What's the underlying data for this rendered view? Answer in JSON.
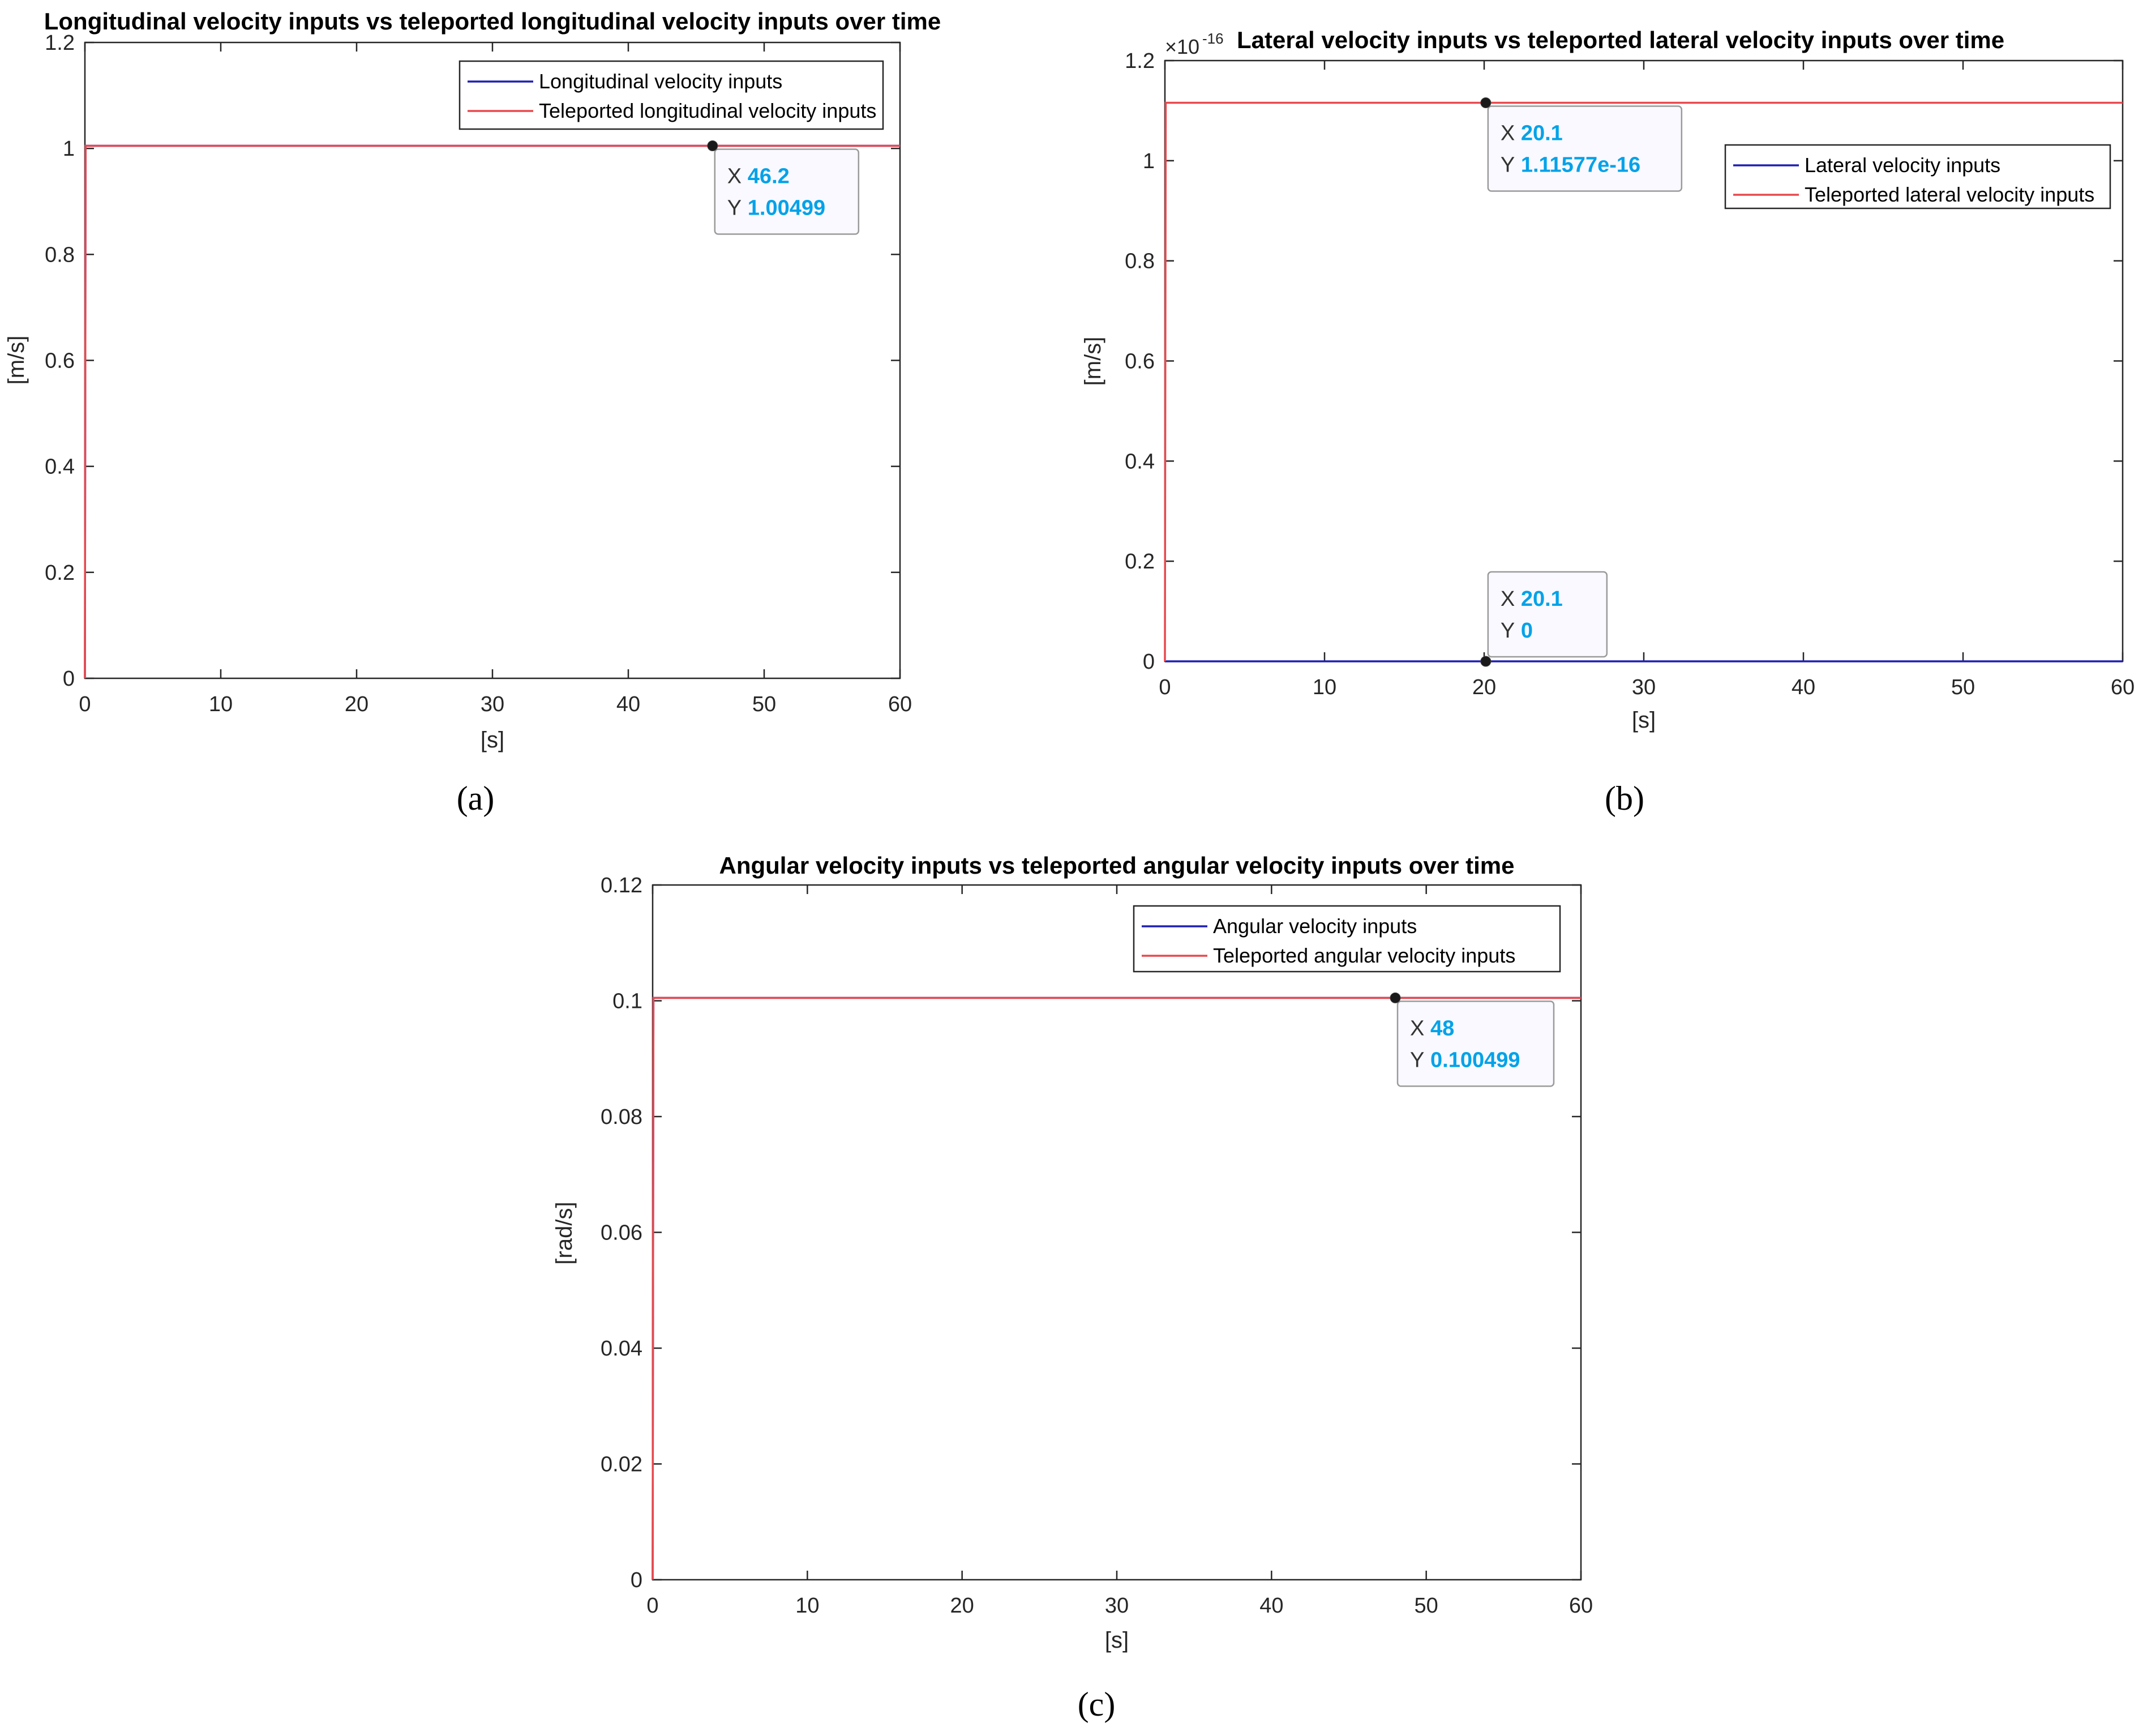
{
  "colors": {
    "series_blue": "#1f1fb4",
    "series_red": "#e8484d",
    "axis": "#262626",
    "datatip_value": "#00a2e8",
    "datatip_bg": "#f9f9ff",
    "datatip_border": "#9a9a9a"
  },
  "chart_data": [
    {
      "type": "line",
      "panel_label": "(a)",
      "title": "Longitudinal velocity inputs vs teleported longitudinal velocity inputs over time",
      "xlabel": "[s]",
      "ylabel": "[m/s]",
      "xlim": [
        0,
        60
      ],
      "ylim": [
        0,
        1.2
      ],
      "xticks": [
        0,
        10,
        20,
        30,
        40,
        50,
        60
      ],
      "xtick_labels": [
        "0",
        "10",
        "20",
        "30",
        "40",
        "50",
        "60"
      ],
      "yticks": [
        0,
        0.2,
        0.4,
        0.6,
        0.8,
        1.0,
        1.2
      ],
      "ytick_labels": [
        "0",
        "0.2",
        "0.4",
        "0.6",
        "0.8",
        "1",
        "1.2"
      ],
      "grid": false,
      "legend_position": "top-right",
      "series": [
        {
          "name": "Longitudinal velocity inputs",
          "color": "#1f1fb4",
          "x": [
            0,
            0.05,
            60
          ],
          "y": [
            0,
            1.00499,
            1.00499
          ]
        },
        {
          "name": "Teleported longitudinal velocity inputs",
          "color": "#e8484d",
          "x": [
            0,
            0.05,
            60
          ],
          "y": [
            0,
            1.00499,
            1.00499
          ]
        }
      ],
      "datatips": [
        {
          "x": 46.2,
          "y": 1.00499,
          "x_text": "46.2",
          "y_text": "1.00499",
          "placement": "below-right"
        }
      ]
    },
    {
      "type": "line",
      "panel_label": "(b)",
      "title": "Lateral velocity inputs vs teleported lateral velocity inputs over time",
      "xlabel": "[s]",
      "ylabel": "[m/s]",
      "y_exponent_label": "-16",
      "xlim": [
        0,
        60
      ],
      "ylim": [
        0,
        1.2
      ],
      "xticks": [
        0,
        10,
        20,
        30,
        40,
        50,
        60
      ],
      "xtick_labels": [
        "0",
        "10",
        "20",
        "30",
        "40",
        "50",
        "60"
      ],
      "yticks": [
        0,
        0.2,
        0.4,
        0.6,
        0.8,
        1.0,
        1.2
      ],
      "ytick_labels": [
        "0",
        "0.2",
        "0.4",
        "0.6",
        "0.8",
        "1",
        "1.2"
      ],
      "grid": false,
      "legend_position": "right",
      "series": [
        {
          "name": "Lateral velocity inputs",
          "color": "#1f1fb4",
          "x": [
            0,
            60
          ],
          "y": [
            0,
            0
          ]
        },
        {
          "name": "Teleported lateral velocity inputs",
          "color": "#e8484d",
          "x": [
            0,
            0.05,
            60
          ],
          "y": [
            0,
            1.11577,
            1.11577
          ]
        }
      ],
      "datatips": [
        {
          "x": 20.1,
          "y": 1.11577,
          "x_text": "20.1",
          "y_text": "1.11577e-16",
          "placement": "below-right"
        },
        {
          "x": 20.1,
          "y": 0,
          "x_text": "20.1",
          "y_text": "0",
          "placement": "above-right"
        }
      ]
    },
    {
      "type": "line",
      "panel_label": "(c)",
      "title": "Angular velocity inputs vs teleported angular velocity inputs over time",
      "xlabel": "[s]",
      "ylabel": "[rad/s]",
      "xlim": [
        0,
        60
      ],
      "ylim": [
        0,
        0.12
      ],
      "xticks": [
        0,
        10,
        20,
        30,
        40,
        50,
        60
      ],
      "xtick_labels": [
        "0",
        "10",
        "20",
        "30",
        "40",
        "50",
        "60"
      ],
      "yticks": [
        0,
        0.02,
        0.04,
        0.06,
        0.08,
        0.1,
        0.12
      ],
      "ytick_labels": [
        "0",
        "0.02",
        "0.04",
        "0.06",
        "0.08",
        "0.1",
        "0.12"
      ],
      "grid": false,
      "legend_position": "top-right",
      "series": [
        {
          "name": "Angular velocity inputs",
          "color": "#1f1fb4",
          "x": [
            0,
            0.05,
            60
          ],
          "y": [
            0,
            0.100499,
            0.100499
          ]
        },
        {
          "name": "Teleported angular velocity inputs",
          "color": "#e8484d",
          "x": [
            0,
            0.05,
            60
          ],
          "y": [
            0,
            0.100499,
            0.100499
          ]
        }
      ],
      "datatips": [
        {
          "x": 48,
          "y": 0.100499,
          "x_text": "48",
          "y_text": "0.100499",
          "placement": "below-right"
        }
      ]
    }
  ]
}
